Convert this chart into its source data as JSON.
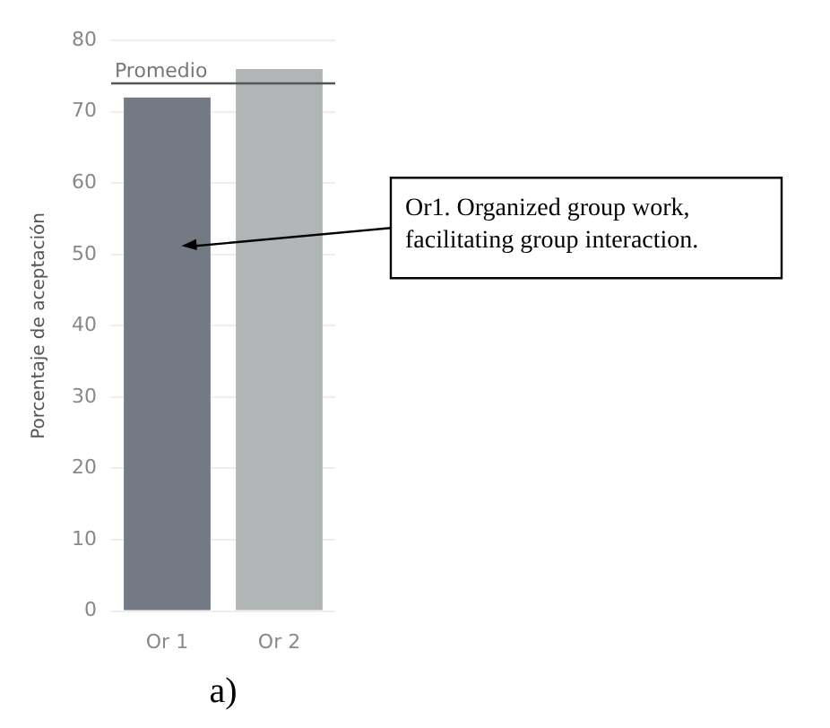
{
  "chart_data": {
    "type": "bar",
    "ylabel": "Porcentaje de aceptación",
    "categories": [
      "Or 1",
      "Or 2"
    ],
    "colors": [
      "#737a84",
      "#b2b5b6"
    ],
    "values": [
      72,
      76
    ],
    "ylim": [
      0,
      80
    ],
    "yticks": [
      0,
      10,
      20,
      30,
      40,
      50,
      60,
      70,
      80
    ],
    "grid": "y",
    "ref_lines": [
      {
        "axis": "y",
        "value": 74,
        "label": "Promedio",
        "color": "#555555"
      }
    ],
    "annotations": [
      "Or1. Organized group work, facilitating group interaction.",
      "a)"
    ]
  }
}
